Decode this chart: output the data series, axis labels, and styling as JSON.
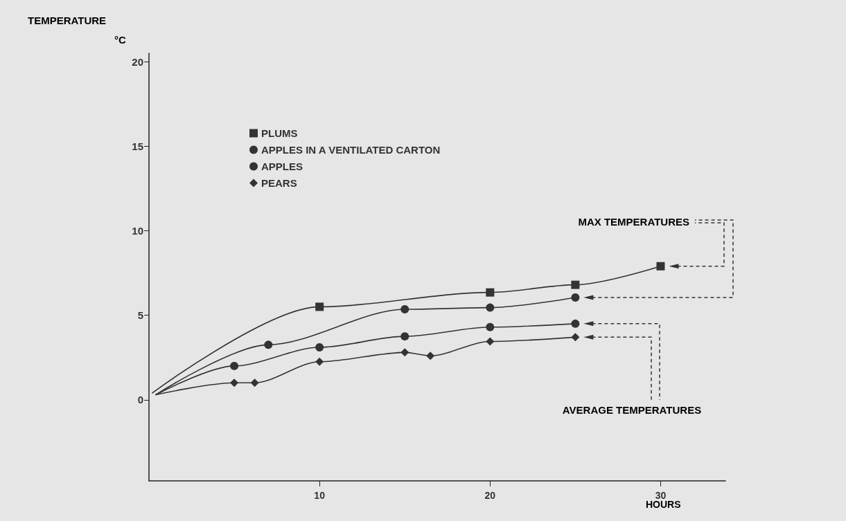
{
  "chart_data": {
    "type": "line",
    "xlabel": "HOURS",
    "ylabel": "TEMPERATURE\n°C",
    "xlim": [
      0,
      33.8
    ],
    "xticks": [
      10,
      20,
      30
    ],
    "ylim": [
      -4.8,
      20.5
    ],
    "yticks": [
      0,
      5,
      10,
      15,
      20
    ],
    "grid": false,
    "legend": "top left",
    "line_style": "solid",
    "annotations": [
      "MAX TEMPERATURES",
      "AVERAGE TEMPERATURES"
    ],
    "series": [
      {
        "name": "PLUMS",
        "color": "#333333",
        "marker": "square",
        "x": [
          0.2,
          10,
          20,
          25,
          30
        ],
        "values": [
          0.4,
          5.5,
          6.35,
          6.8,
          7.9
        ]
      },
      {
        "name": "APPLES IN A VENTILATED CARTON",
        "color": "#333333",
        "marker": "circle",
        "x": [
          0.4,
          7,
          15,
          20,
          25
        ],
        "values": [
          0.3,
          3.25,
          5.35,
          5.45,
          6.05
        ]
      },
      {
        "name": "APPLES",
        "color": "#333333",
        "marker": "circle",
        "x": [
          0.4,
          5,
          10,
          15,
          20,
          25
        ],
        "values": [
          0.3,
          2.0,
          3.1,
          3.75,
          4.3,
          4.5
        ]
      },
      {
        "name": "PEARS",
        "color": "#333333",
        "marker": "diamond",
        "x": [
          0.4,
          5,
          6.2,
          10,
          15,
          16.5,
          20,
          25
        ],
        "values": [
          0.3,
          1.0,
          1.0,
          2.25,
          2.8,
          2.6,
          3.45,
          3.7
        ]
      }
    ]
  }
}
